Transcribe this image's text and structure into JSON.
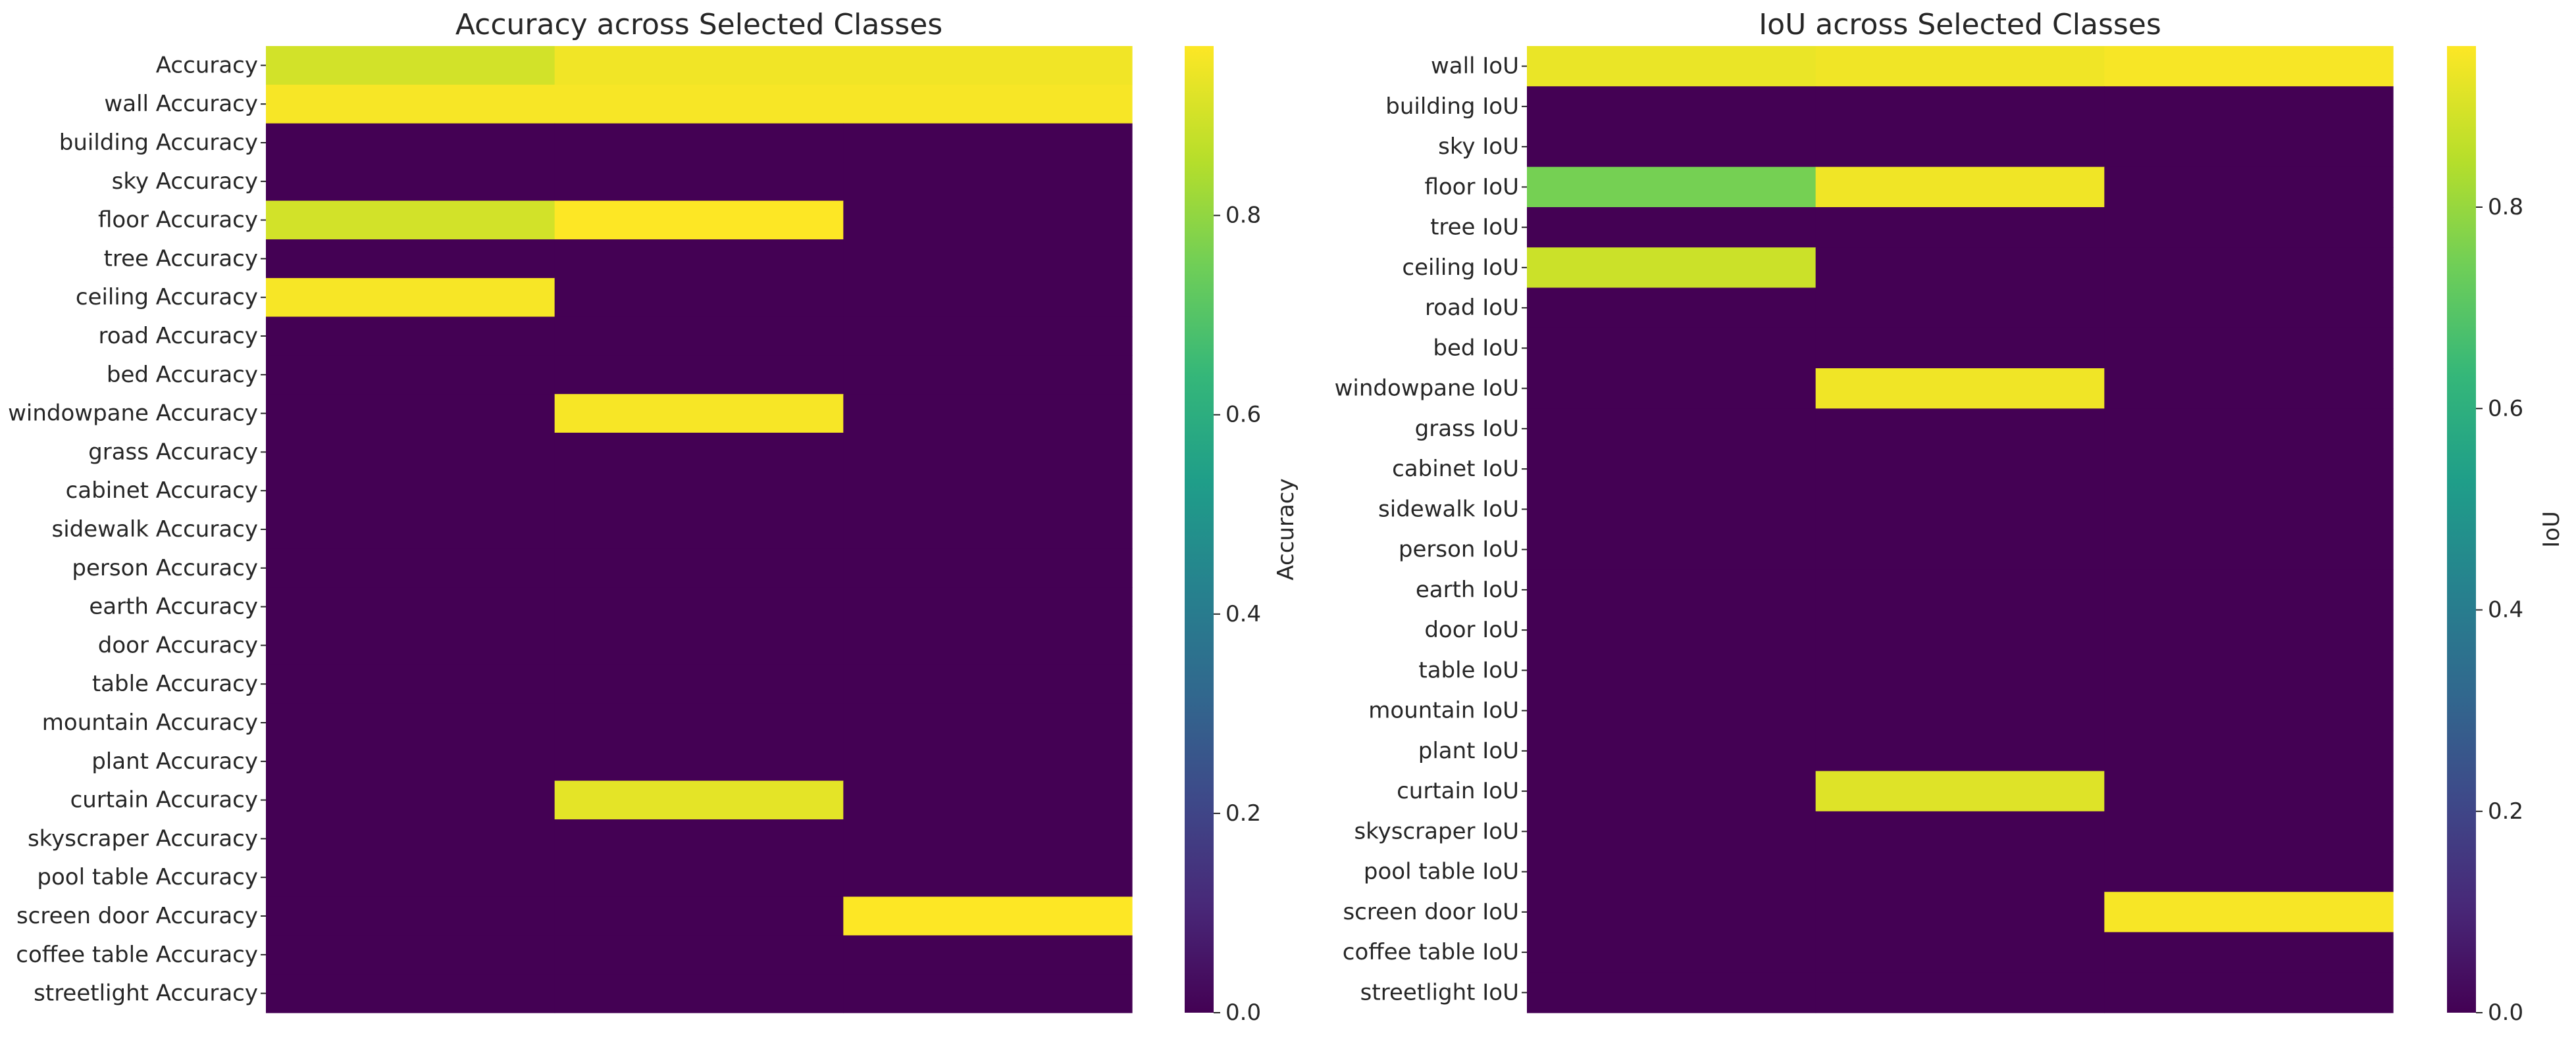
{
  "chart_data": [
    {
      "type": "heatmap",
      "title": "Accuracy across Selected Classes",
      "ylabels": [
        "Accuracy",
        "wall Accuracy",
        "building Accuracy",
        "sky Accuracy",
        "floor Accuracy",
        "tree Accuracy",
        "ceiling Accuracy",
        "road Accuracy",
        "bed  Accuracy",
        "windowpane Accuracy",
        "grass Accuracy",
        "cabinet Accuracy",
        "sidewalk Accuracy",
        "person Accuracy",
        "earth Accuracy",
        "door Accuracy",
        "table Accuracy",
        "mountain Accuracy",
        "plant Accuracy",
        "curtain Accuracy",
        "skyscraper Accuracy",
        "pool table Accuracy",
        "screen door Accuracy",
        "coffee table Accuracy",
        "streetlight Accuracy"
      ],
      "xlabels": [],
      "values": [
        [
          0.9,
          0.95,
          0.95
        ],
        [
          0.96,
          0.96,
          0.96
        ],
        [
          0,
          0,
          0
        ],
        [
          0,
          0,
          0
        ],
        [
          0.9,
          0.97,
          0
        ],
        [
          0,
          0,
          0
        ],
        [
          0.96,
          0,
          0
        ],
        [
          0,
          0,
          0
        ],
        [
          0,
          0,
          0
        ],
        [
          0,
          0.96,
          0
        ],
        [
          0,
          0,
          0
        ],
        [
          0,
          0,
          0
        ],
        [
          0,
          0,
          0
        ],
        [
          0,
          0,
          0
        ],
        [
          0,
          0,
          0
        ],
        [
          0,
          0,
          0
        ],
        [
          0,
          0,
          0
        ],
        [
          0,
          0,
          0
        ],
        [
          0,
          0,
          0
        ],
        [
          0,
          0.93,
          0
        ],
        [
          0,
          0,
          0
        ],
        [
          0,
          0,
          0
        ],
        [
          0,
          0,
          0.97
        ],
        [
          0,
          0,
          0
        ],
        [
          0,
          0,
          0
        ]
      ],
      "colorbar": {
        "label": "Accuracy",
        "ticks": [
          0.0,
          0.2,
          0.4,
          0.6,
          0.8
        ],
        "tick_labels": [
          "0.0",
          "0.2",
          "0.4",
          "0.6",
          "0.8"
        ],
        "vmin": 0,
        "vmax": 0.97
      },
      "colormap": "viridis"
    },
    {
      "type": "heatmap",
      "title": "IoU across Selected Classes",
      "ylabels": [
        "wall IoU",
        "building IoU",
        "sky IoU",
        "floor IoU",
        "tree IoU",
        "ceiling IoU",
        "road IoU",
        "bed  IoU",
        "windowpane IoU",
        "grass IoU",
        "cabinet IoU",
        "sidewalk IoU",
        "person IoU",
        "earth IoU",
        "door IoU",
        "table IoU",
        "mountain IoU",
        "plant IoU",
        "curtain IoU",
        "skyscraper IoU",
        "pool table IoU",
        "screen door IoU",
        "coffee table IoU",
        "streetlight IoU"
      ],
      "xlabels": [],
      "values": [
        [
          0.93,
          0.94,
          0.95
        ],
        [
          0,
          0,
          0
        ],
        [
          0,
          0,
          0
        ],
        [
          0.75,
          0.94,
          0
        ],
        [
          0,
          0,
          0
        ],
        [
          0.88,
          0,
          0
        ],
        [
          0,
          0,
          0
        ],
        [
          0,
          0,
          0
        ],
        [
          0,
          0.94,
          0
        ],
        [
          0,
          0,
          0
        ],
        [
          0,
          0,
          0
        ],
        [
          0,
          0,
          0
        ],
        [
          0,
          0,
          0
        ],
        [
          0,
          0,
          0
        ],
        [
          0,
          0,
          0
        ],
        [
          0,
          0,
          0
        ],
        [
          0,
          0,
          0
        ],
        [
          0,
          0,
          0
        ],
        [
          0,
          0.91,
          0
        ],
        [
          0,
          0,
          0
        ],
        [
          0,
          0,
          0
        ],
        [
          0,
          0,
          0.95
        ],
        [
          0,
          0,
          0
        ],
        [
          0,
          0,
          0
        ]
      ],
      "colorbar": {
        "label": "IoU",
        "ticks": [
          0.0,
          0.2,
          0.4,
          0.6,
          0.8
        ],
        "tick_labels": [
          "0.0",
          "0.2",
          "0.4",
          "0.6",
          "0.8"
        ],
        "vmin": 0,
        "vmax": 0.96
      },
      "colormap": "viridis"
    }
  ]
}
